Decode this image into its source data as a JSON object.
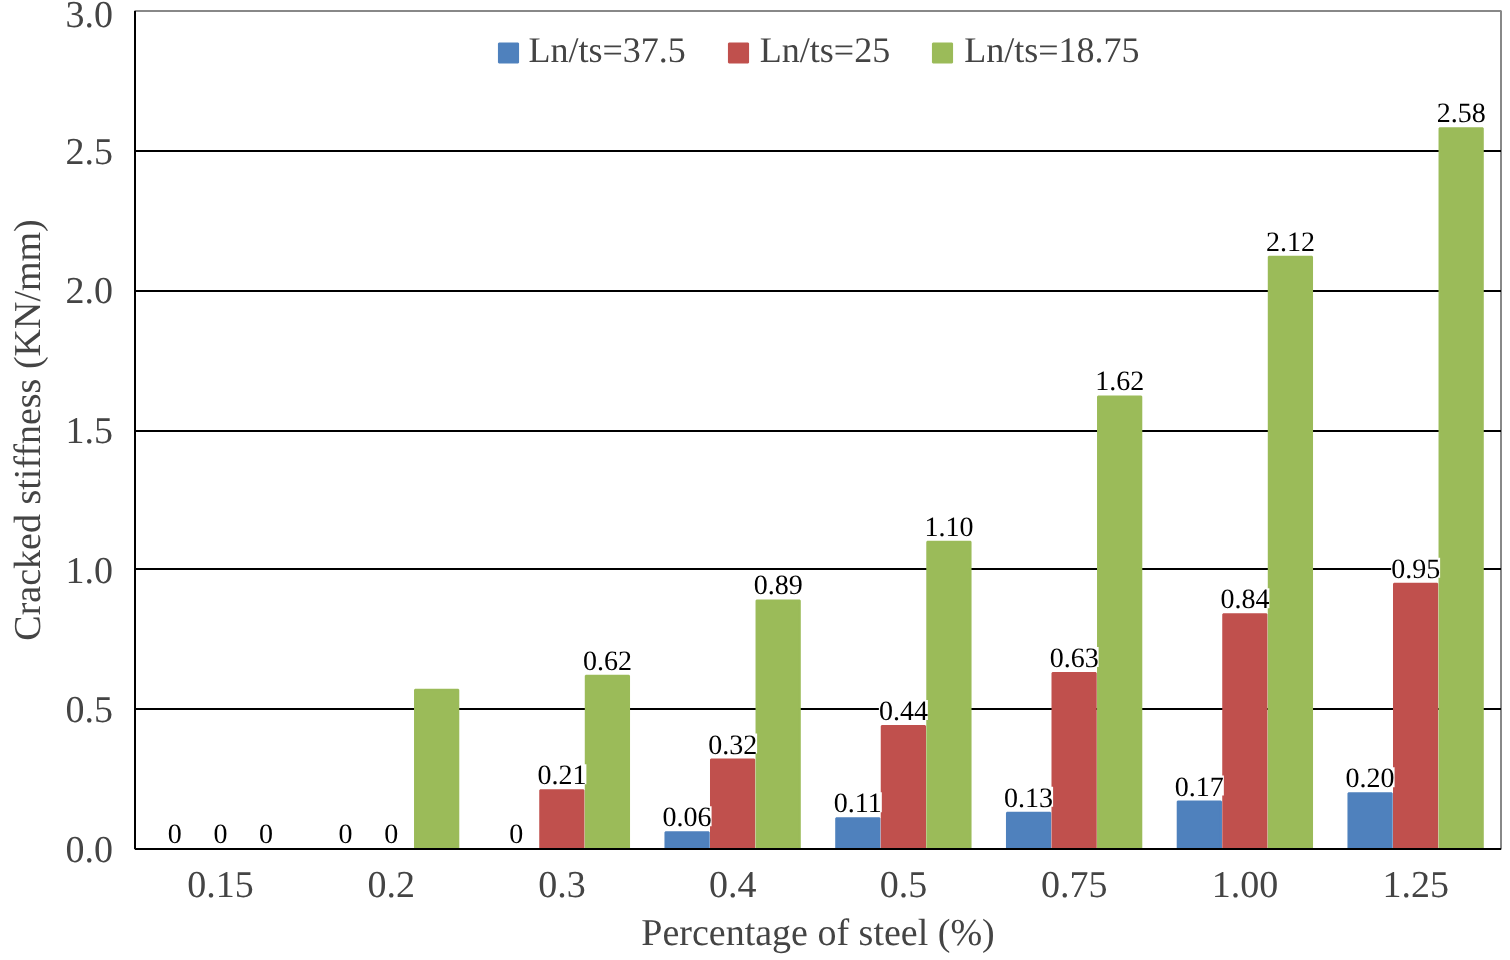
{
  "chart_data": {
    "type": "bar",
    "xlabel": "Percentage of steel (%)",
    "ylabel": "Cracked stiffness (KN/mm)",
    "categories": [
      "0.15",
      "0.2",
      "0.3",
      "0.4",
      "0.5",
      "0.75",
      "1.00",
      "1.25"
    ],
    "series": [
      {
        "name": "Ln/ts=37.5",
        "color": "#4f81bd",
        "values": [
          0,
          0,
          0,
          0.06,
          0.11,
          0.13,
          0.17,
          0.2
        ],
        "value_labels": [
          "0",
          "0",
          "0",
          "0.06",
          "0.11",
          "0.13",
          "0.17",
          "0.20"
        ]
      },
      {
        "name": "Ln/ts=25",
        "color": "#c0504d",
        "values": [
          0,
          0,
          0.21,
          0.32,
          0.44,
          0.63,
          0.84,
          0.95
        ],
        "value_labels": [
          "0",
          "0",
          "0.21",
          "0.32",
          "0.44",
          "0.63",
          "0.84",
          "0.95"
        ]
      },
      {
        "name": "Ln/ts=18.75",
        "color": "#9bbb59",
        "values": [
          0,
          0.57,
          0.62,
          0.89,
          1.1,
          1.62,
          2.12,
          2.58
        ],
        "value_labels": [
          "0",
          null,
          "0.62",
          "0.89",
          "1.10",
          "1.62",
          "2.12",
          "2.58"
        ]
      }
    ],
    "ylim": [
      0,
      3
    ],
    "yticks": [
      {
        "value": 0,
        "label": "0.0"
      },
      {
        "value": 0.5,
        "label": "0.5"
      },
      {
        "value": 1,
        "label": "1.0"
      },
      {
        "value": 1.5,
        "label": "1.5"
      },
      {
        "value": 2,
        "label": "2.0"
      },
      {
        "value": 2.5,
        "label": "2.5"
      },
      {
        "value": 3,
        "label": "3.0"
      }
    ],
    "grid": "y",
    "legend": "top"
  }
}
